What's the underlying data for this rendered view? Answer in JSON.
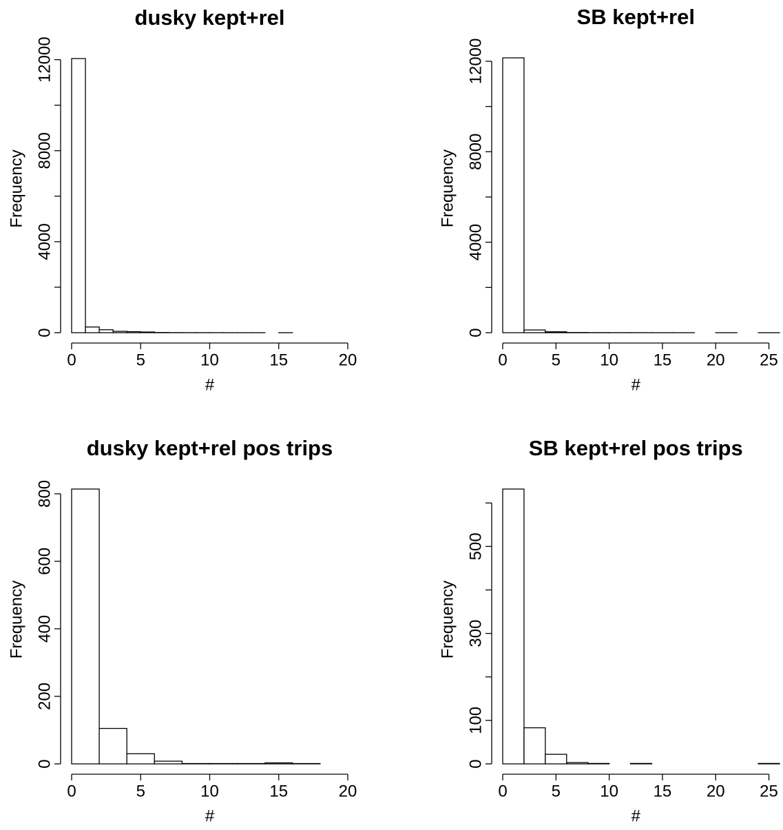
{
  "chart_data": [
    {
      "type": "histogram",
      "title": "dusky kept+rel",
      "x_label": "#",
      "y_label": "Frequency",
      "bins": [
        0,
        1,
        2,
        3,
        4,
        5,
        6,
        7,
        8,
        9,
        10,
        11,
        12,
        13,
        14,
        15,
        16,
        17,
        18,
        19,
        20
      ],
      "values": [
        12050,
        250,
        130,
        60,
        45,
        30,
        10,
        5,
        3,
        2,
        2,
        1,
        1,
        1,
        0,
        1,
        0,
        0,
        0,
        0
      ],
      "xlim": [
        0,
        20
      ],
      "xticks": [
        0,
        5,
        10,
        15,
        20
      ],
      "ylim": [
        0,
        12050
      ],
      "yticks": [
        0,
        4000,
        8000,
        12000
      ],
      "yminorticks": [
        2000,
        6000,
        10000
      ],
      "color": "#ffffff"
    },
    {
      "type": "histogram",
      "title": "SB kept+rel",
      "x_label": "#",
      "y_label": "Frequency",
      "bins": [
        0,
        2,
        4,
        6,
        8,
        10,
        12,
        14,
        16,
        18,
        20,
        22,
        24,
        26
      ],
      "values": [
        12150,
        120,
        40,
        10,
        5,
        3,
        2,
        1,
        1,
        0,
        1,
        0,
        1
      ],
      "xlim": [
        0,
        26
      ],
      "xticks": [
        0,
        5,
        10,
        15,
        20,
        25
      ],
      "ylim": [
        0,
        12150
      ],
      "yticks": [
        0,
        4000,
        8000,
        12000
      ],
      "yminorticks": [
        2000,
        6000,
        10000
      ],
      "color": "#ffffff"
    },
    {
      "type": "histogram",
      "title": "dusky kept+rel pos trips",
      "x_label": "#",
      "y_label": "Frequency",
      "bins": [
        0,
        2,
        4,
        6,
        8,
        10,
        12,
        14,
        16,
        18,
        20
      ],
      "values": [
        814,
        105,
        30,
        8,
        1,
        1,
        1,
        3,
        1,
        0
      ],
      "xlim": [
        0,
        20
      ],
      "xticks": [
        0,
        5,
        10,
        15,
        20
      ],
      "ylim": [
        0,
        814
      ],
      "yticks": [
        0,
        200,
        400,
        600,
        800
      ],
      "color": "#ffffff"
    },
    {
      "type": "histogram",
      "title": "SB kept+rel pos trips",
      "x_label": "#",
      "y_label": "Frequency",
      "bins": [
        0,
        2,
        4,
        6,
        8,
        10,
        12,
        14,
        16,
        18,
        20,
        22,
        24,
        26
      ],
      "values": [
        632,
        83,
        22,
        3,
        1,
        0,
        1,
        0,
        0,
        0,
        0,
        0,
        1
      ],
      "xlim": [
        0,
        26
      ],
      "xticks": [
        0,
        5,
        10,
        15,
        20,
        25
      ],
      "ylim": [
        0,
        632
      ],
      "yticks": [
        0,
        100,
        300,
        500
      ],
      "yminorticks": [
        200,
        400,
        600
      ],
      "color": "#ffffff"
    }
  ]
}
